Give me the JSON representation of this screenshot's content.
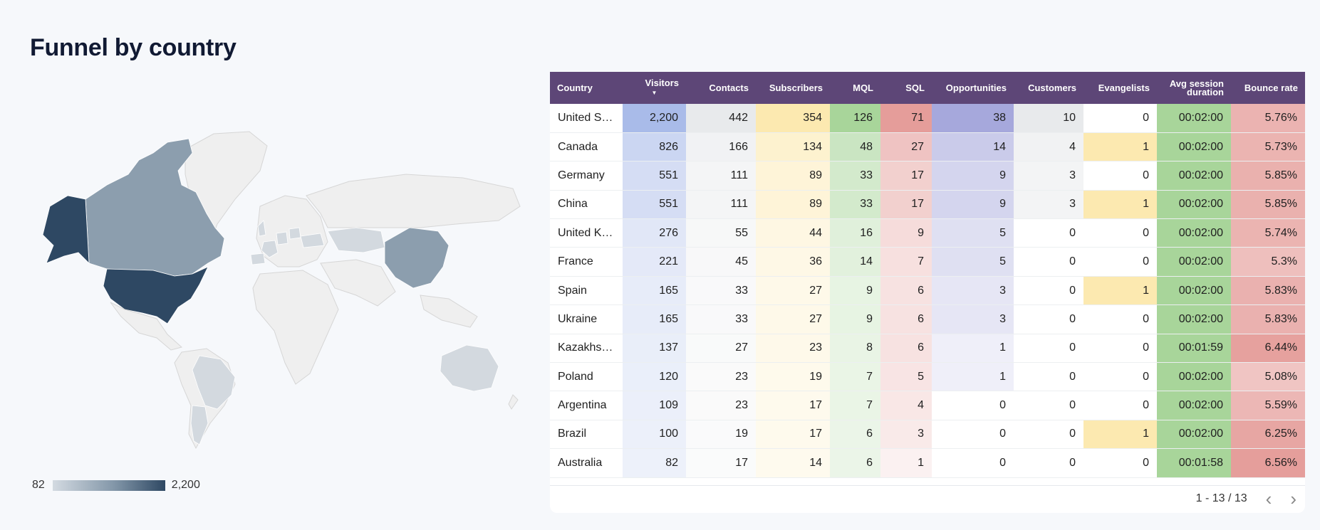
{
  "page": {
    "title": "Funnel by country"
  },
  "legend": {
    "min": "82",
    "max": "2,200"
  },
  "table": {
    "columns": [
      "Country",
      "Visitors",
      "Contacts",
      "Subscribers",
      "MQL",
      "SQL",
      "Opportunities",
      "Customers",
      "Evangelists",
      "Avg session duration",
      "Bounce rate"
    ],
    "sorted_column_index": 1,
    "rows": [
      [
        "United St…",
        "2,200",
        "442",
        "354",
        "126",
        "71",
        "38",
        "10",
        "0",
        "00:02:00",
        "5.76%"
      ],
      [
        "Canada",
        "826",
        "166",
        "134",
        "48",
        "27",
        "14",
        "4",
        "1",
        "00:02:00",
        "5.73%"
      ],
      [
        "Germany",
        "551",
        "111",
        "89",
        "33",
        "17",
        "9",
        "3",
        "0",
        "00:02:00",
        "5.85%"
      ],
      [
        "China",
        "551",
        "111",
        "89",
        "33",
        "17",
        "9",
        "3",
        "1",
        "00:02:00",
        "5.85%"
      ],
      [
        "United Ki…",
        "276",
        "55",
        "44",
        "16",
        "9",
        "5",
        "0",
        "0",
        "00:02:00",
        "5.74%"
      ],
      [
        "France",
        "221",
        "45",
        "36",
        "14",
        "7",
        "5",
        "0",
        "0",
        "00:02:00",
        "5.3%"
      ],
      [
        "Spain",
        "165",
        "33",
        "27",
        "9",
        "6",
        "3",
        "0",
        "1",
        "00:02:00",
        "5.83%"
      ],
      [
        "Ukraine",
        "165",
        "33",
        "27",
        "9",
        "6",
        "3",
        "0",
        "0",
        "00:02:00",
        "5.83%"
      ],
      [
        "Kazakhs…",
        "137",
        "27",
        "23",
        "8",
        "6",
        "1",
        "0",
        "0",
        "00:01:59",
        "6.44%"
      ],
      [
        "Poland",
        "120",
        "23",
        "19",
        "7",
        "5",
        "1",
        "0",
        "0",
        "00:02:00",
        "5.08%"
      ],
      [
        "Argentina",
        "109",
        "23",
        "17",
        "7",
        "4",
        "0",
        "0",
        "0",
        "00:02:00",
        "5.59%"
      ],
      [
        "Brazil",
        "100",
        "19",
        "17",
        "6",
        "3",
        "0",
        "0",
        "1",
        "00:02:00",
        "6.25%"
      ],
      [
        "Australia",
        "82",
        "17",
        "14",
        "6",
        "1",
        "0",
        "0",
        "0",
        "00:01:58",
        "6.56%"
      ]
    ]
  },
  "heat_colors": [
    "",
    "#a9bbe9",
    "#e8eaec",
    "#fce9b0",
    "#a8d59a",
    "#e59d9a",
    "#a6a8dc",
    "#e8eaec",
    "#fce9b0",
    "#a8d59a",
    "#e59d9a"
  ],
  "pager": {
    "range": "1 - 13 / 13",
    "prev_icon": "chevron-left-icon",
    "next_icon": "chevron-right-icon"
  },
  "colors": {
    "header_bg": "#5d4677",
    "map_dark": "#2e4863",
    "map_mid": "#8c9eae",
    "map_light": "#d3d9df",
    "map_base": "#efefef"
  }
}
